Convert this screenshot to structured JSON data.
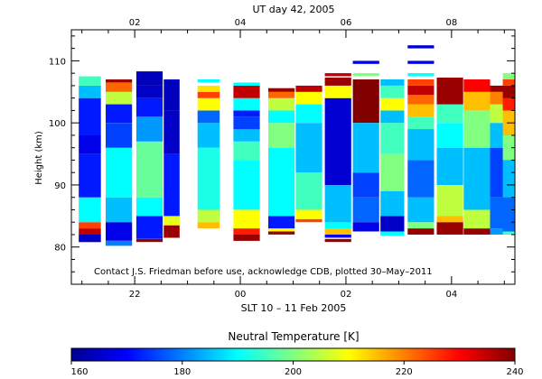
{
  "chart_data": {
    "type": "heatmap",
    "top_title": "UT day 42, 2005",
    "top_ticks": [
      "02",
      "04",
      "06",
      "08"
    ],
    "ylabel": "Height (km)",
    "yticks": [
      80,
      90,
      100,
      110
    ],
    "ylim": [
      74,
      115
    ],
    "xlabel": "SLT 10 – 11 Feb 2005",
    "bottom_ticks": [
      "22",
      "00",
      "02",
      "04"
    ],
    "annotation": "Contact J.S. Friedman before use, acknowledge CDB, plotted 30–May–2011",
    "colorbar": {
      "title": "Neutral Temperature [K]",
      "min": 160,
      "max": 240,
      "ticks": [
        "160",
        "180",
        "200",
        "220",
        "240"
      ]
    },
    "x_range_hours": [
      -3.2,
      5.2
    ],
    "profiles": [
      {
        "t": -2.85,
        "w": 0.42,
        "segments": [
          [
            80.8,
            82,
            165
          ],
          [
            82,
            83,
            235
          ],
          [
            83,
            84,
            225
          ],
          [
            84,
            88,
            190
          ],
          [
            88,
            95,
            172
          ],
          [
            95,
            98,
            168
          ],
          [
            98,
            104,
            172
          ],
          [
            104,
            106,
            185
          ],
          [
            106,
            107.5,
            195
          ]
        ]
      },
      {
        "t": -2.3,
        "w": 0.5,
        "segments": [
          [
            80.2,
            81,
            180
          ],
          [
            81,
            84,
            168
          ],
          [
            84,
            88,
            185
          ],
          [
            88,
            96,
            190
          ],
          [
            96,
            100,
            175
          ],
          [
            100,
            103,
            172
          ],
          [
            103,
            105,
            205
          ],
          [
            105,
            106.5,
            222
          ],
          [
            106.5,
            107,
            238
          ]
        ]
      },
      {
        "t": -1.72,
        "w": 0.5,
        "segments": [
          [
            80.8,
            81.3,
            238
          ],
          [
            81.3,
            85,
            172
          ],
          [
            85,
            88,
            190
          ],
          [
            88,
            97,
            198
          ],
          [
            97,
            101,
            182
          ],
          [
            101,
            104,
            172
          ],
          [
            104,
            106,
            165
          ],
          [
            106,
            108.3,
            164
          ]
        ]
      },
      {
        "t": -1.3,
        "w": 0.3,
        "segments": [
          [
            81.5,
            83.5,
            238
          ],
          [
            83.5,
            85,
            208
          ],
          [
            85,
            95,
            172
          ],
          [
            95,
            102,
            165
          ],
          [
            102,
            107,
            164
          ]
        ]
      },
      {
        "t": -0.6,
        "w": 0.42,
        "segments": [
          [
            83,
            84,
            215
          ],
          [
            84,
            86,
            205
          ],
          [
            86,
            96,
            192
          ],
          [
            96,
            100,
            185
          ],
          [
            100,
            102,
            178
          ],
          [
            102,
            104,
            210
          ],
          [
            104,
            105,
            225
          ],
          [
            105,
            106,
            212
          ],
          [
            106.5,
            107,
            190
          ]
        ]
      },
      {
        "t": 0.12,
        "w": 0.5,
        "segments": [
          [
            81,
            82,
            238
          ],
          [
            82,
            83,
            228
          ],
          [
            83,
            86,
            210
          ],
          [
            86,
            94,
            190
          ],
          [
            94,
            97,
            195
          ],
          [
            97,
            99,
            185
          ],
          [
            99,
            101,
            175
          ],
          [
            101,
            102,
            172
          ],
          [
            102,
            104,
            190
          ],
          [
            104,
            106,
            235
          ],
          [
            106,
            106.5,
            190
          ]
        ]
      },
      {
        "t": 0.78,
        "w": 0.5,
        "segments": [
          [
            82,
            82.5,
            238
          ],
          [
            82.5,
            83,
            210
          ],
          [
            83,
            85,
            172
          ],
          [
            85,
            96,
            190
          ],
          [
            96,
            100,
            200
          ],
          [
            100,
            102,
            190
          ],
          [
            102,
            104,
            205
          ],
          [
            104,
            105,
            222
          ],
          [
            105,
            105.6,
            238
          ]
        ]
      },
      {
        "t": 1.3,
        "w": 0.5,
        "segments": [
          [
            84,
            84.5,
            225
          ],
          [
            84.5,
            86,
            210
          ],
          [
            86,
            92,
            195
          ],
          [
            92,
            100,
            185
          ],
          [
            100,
            103,
            190
          ],
          [
            103,
            105,
            210
          ],
          [
            105,
            106,
            235
          ]
        ]
      },
      {
        "t": 1.85,
        "w": 0.5,
        "segments": [
          [
            80.8,
            81.3,
            238
          ],
          [
            81.5,
            82,
            168
          ],
          [
            82,
            83,
            215
          ],
          [
            83,
            84,
            190
          ],
          [
            84,
            90,
            185
          ],
          [
            90,
            104,
            166
          ],
          [
            104,
            106,
            210
          ],
          [
            106,
            107.3,
            238
          ],
          [
            107.5,
            108,
            235
          ]
        ]
      },
      {
        "t": 2.38,
        "w": 0.5,
        "segments": [
          [
            82.5,
            84,
            168
          ],
          [
            84,
            88,
            178
          ],
          [
            88,
            92,
            175
          ],
          [
            92,
            100,
            185
          ],
          [
            100,
            107,
            240
          ],
          [
            107.5,
            108,
            200
          ],
          [
            109.5,
            110,
            168
          ]
        ]
      },
      {
        "t": 2.88,
        "w": 0.45,
        "segments": [
          [
            81.8,
            82.5,
            190
          ],
          [
            82.5,
            85,
            165
          ],
          [
            85,
            89,
            185
          ],
          [
            89,
            95,
            200
          ],
          [
            95,
            100,
            195
          ],
          [
            100,
            102,
            185
          ],
          [
            102,
            104,
            210
          ],
          [
            104,
            106,
            195
          ],
          [
            106,
            107,
            185
          ]
        ]
      },
      {
        "t": 3.42,
        "w": 0.5,
        "segments": [
          [
            82,
            83,
            238
          ],
          [
            83,
            84,
            200
          ],
          [
            84,
            88,
            185
          ],
          [
            88,
            94,
            178
          ],
          [
            94,
            99,
            185
          ],
          [
            99,
            101,
            195
          ],
          [
            101,
            103,
            215
          ],
          [
            103,
            104.5,
            222
          ],
          [
            104.5,
            106,
            235
          ],
          [
            106,
            107,
            225
          ],
          [
            107.5,
            108,
            190
          ],
          [
            109.5,
            110,
            168
          ],
          [
            112,
            112.5,
            166
          ]
        ]
      },
      {
        "t": 3.97,
        "w": 0.5,
        "segments": [
          [
            82,
            84,
            238
          ],
          [
            84,
            85,
            215
          ],
          [
            85,
            90,
            205
          ],
          [
            90,
            96,
            185
          ],
          [
            96,
            100,
            190
          ],
          [
            100,
            103,
            195
          ],
          [
            103,
            107.3,
            238
          ]
        ]
      },
      {
        "t": 4.48,
        "w": 0.5,
        "segments": [
          [
            82,
            83,
            238
          ],
          [
            83,
            86,
            205
          ],
          [
            86,
            96,
            185
          ],
          [
            96,
            102,
            200
          ],
          [
            102,
            105,
            215
          ],
          [
            105,
            107,
            230
          ]
        ]
      },
      {
        "t": 4.98,
        "w": 0.5,
        "segments": [
          [
            82,
            83,
            182
          ],
          [
            83,
            88,
            178
          ],
          [
            88,
            96,
            175
          ],
          [
            96,
            100,
            185
          ],
          [
            100,
            103,
            205
          ],
          [
            103,
            105,
            220
          ],
          [
            105,
            106,
            238
          ]
        ]
      },
      {
        "t": 5.18,
        "w": 0.42,
        "segments": [
          [
            82,
            82.5,
            195
          ],
          [
            82.5,
            88,
            178
          ],
          [
            88,
            94,
            185
          ],
          [
            94,
            98,
            200
          ],
          [
            98,
            102,
            215
          ],
          [
            102,
            104,
            228
          ],
          [
            104,
            106,
            238
          ],
          [
            106,
            107,
            225
          ],
          [
            107,
            108,
            200
          ]
        ]
      }
    ]
  }
}
